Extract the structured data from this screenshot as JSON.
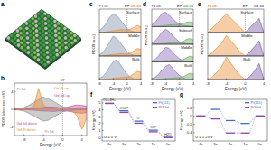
{
  "panel_labels": [
    "a",
    "b",
    "c",
    "d",
    "e",
    "f",
    "g"
  ],
  "chart_data": [
    {
      "type": "line",
      "x_label": "Energy (eV)",
      "y_label": "PDOS (electrons / eV)",
      "x": [
        -10,
        -9,
        -8,
        -7,
        -6,
        -5,
        -4,
        -3,
        -2,
        -1,
        0,
        1,
        2,
        3,
        4,
        5
      ],
      "xlim": [
        -10,
        5
      ],
      "ylim": [
        -6,
        6
      ],
      "xticks": [
        -8,
        -4,
        0,
        4
      ],
      "yticks": [
        -4,
        0,
        4
      ],
      "annotations": [
        {
          "text": "EF",
          "x": 0
        }
      ],
      "series": [
        {
          "name": "Pt 5d",
          "color": "#8c8c8c",
          "values": [
            0.1,
            0.2,
            0.4,
            0.9,
            1.6,
            2.2,
            2.8,
            2.4,
            1.9,
            1.2,
            0.6,
            0.3,
            0.2,
            0.1,
            0.1,
            0.05
          ]
        },
        {
          "name": "Gd 4f up",
          "color": "#e8913a",
          "values": [
            0,
            0,
            0,
            0.2,
            0.6,
            4.8,
            1.0,
            0.3,
            0.1,
            0,
            0,
            0,
            0,
            0,
            0,
            0
          ]
        },
        {
          "name": "Gd 5d up",
          "color": "#c0509a",
          "values": [
            0,
            0,
            0.1,
            0.1,
            0.2,
            0.3,
            0.4,
            0.5,
            0.5,
            0.4,
            0.3,
            0.5,
            0.8,
            1.0,
            0.9,
            0.7
          ]
        },
        {
          "name": "Gd 5d down",
          "color": "#c0509a",
          "values": [
            0,
            0,
            -0.1,
            -0.1,
            -0.2,
            -0.3,
            -0.4,
            -0.4,
            -0.5,
            -0.4,
            -0.3,
            -0.4,
            -0.6,
            -0.8,
            -0.9,
            -0.7
          ]
        },
        {
          "name": "Gd 4f down",
          "color": "#e8913a",
          "values": [
            0,
            0,
            0,
            0,
            0,
            0,
            0,
            0,
            0,
            0,
            0,
            0,
            -0.3,
            -1.5,
            -4.6,
            -2.0
          ]
        },
        {
          "name": "Pt 5d",
          "color": "#8c8c8c",
          "values": [
            -0.1,
            -0.2,
            -0.4,
            -0.9,
            -1.6,
            -2.1,
            -2.7,
            -2.5,
            -1.9,
            -1.2,
            -0.6,
            -0.3,
            -0.2,
            -0.1,
            -0.1,
            -0.05
          ]
        }
      ]
    },
    {
      "type": "line",
      "title": "Surface",
      "x": [
        -8,
        -7,
        -6,
        -5,
        -4,
        -3,
        -2,
        -1,
        0,
        1,
        2,
        3,
        4
      ],
      "xlim": [
        -8,
        4
      ],
      "ylim": [
        0,
        4
      ],
      "tick_labels": false,
      "legend": "top",
      "annotations": [
        {
          "text": "EF",
          "x": 0
        }
      ],
      "series": [
        {
          "name": "Pt 5d",
          "color": "#8593ad",
          "values": [
            0.3,
            0.8,
            1.6,
            2.6,
            3.2,
            2.9,
            2.2,
            1.4,
            0.7,
            0.3,
            0.15,
            0.1,
            0.1
          ]
        },
        {
          "name": "Gd 5d",
          "color": "#e8913a",
          "values": [
            0,
            0,
            0.1,
            0.2,
            0.3,
            0.4,
            0.5,
            0.5,
            0.4,
            0.6,
            0.9,
            1.2,
            1.0
          ]
        }
      ]
    },
    {
      "type": "line",
      "title": "Middle",
      "y_label": "PDOS (a.u.)",
      "x": [
        -8,
        -7,
        -6,
        -5,
        -4,
        -3,
        -2,
        -1,
        0,
        1,
        2,
        3,
        4
      ],
      "xlim": [
        -8,
        4
      ],
      "ylim": [
        0,
        4
      ],
      "tick_labels": false,
      "series": [
        {
          "color": "#8593ad",
          "values": [
            0.2,
            0.6,
            1.4,
            2.4,
            3.4,
            3.0,
            2.3,
            1.5,
            0.8,
            0.3,
            0.1,
            0.1,
            0.1
          ]
        },
        {
          "color": "#e8913a",
          "values": [
            0,
            0,
            0.1,
            0.2,
            0.3,
            0.3,
            0.4,
            0.4,
            0.3,
            0.5,
            0.9,
            1.3,
            1.1
          ]
        }
      ]
    },
    {
      "type": "line",
      "title": "Bulk",
      "x_label": "Energy (eV)",
      "x": [
        -8,
        -7,
        -6,
        -5,
        -4,
        -3,
        -2,
        -1,
        0,
        1,
        2,
        3,
        4
      ],
      "xlim": [
        -8,
        4
      ],
      "ylim": [
        0,
        4
      ],
      "xticks": [
        -8,
        -4,
        0,
        4
      ],
      "tick_labels": "x",
      "series": [
        {
          "color": "#8593ad",
          "values": [
            0.2,
            0.5,
            1.2,
            2.2,
            3.0,
            3.4,
            2.6,
            1.7,
            0.9,
            0.4,
            0.1,
            0.1,
            0.1
          ]
        },
        {
          "color": "#e8913a",
          "values": [
            0,
            0,
            0.1,
            0.1,
            0.2,
            0.3,
            0.3,
            0.4,
            0.4,
            0.6,
            1.0,
            1.4,
            1.2
          ]
        }
      ]
    },
    {
      "type": "line",
      "title": "Surface",
      "x": [
        -8,
        -7,
        -6,
        -5,
        -4,
        -3,
        -2,
        -1,
        0,
        1,
        2,
        3,
        4
      ],
      "xlim": [
        -8,
        4
      ],
      "ylim": [
        0,
        4
      ],
      "tick_labels": false,
      "legend": "top",
      "annotations": [
        {
          "text": "EF",
          "x": 0
        }
      ],
      "series": [
        {
          "name": "Pt 5d",
          "color": "#8e6bb8",
          "values": [
            0.4,
            1.0,
            2.0,
            3.0,
            3.3,
            2.6,
            1.8,
            1.1,
            0.6,
            0.3,
            0.2,
            0.1,
            0.1
          ]
        },
        {
          "name": "Gd 5d",
          "color": "#6aab5e",
          "values": [
            0,
            0.1,
            0.1,
            0.2,
            0.3,
            0.4,
            0.4,
            0.5,
            0.5,
            0.7,
            1.0,
            1.1,
            0.9
          ]
        }
      ]
    },
    {
      "type": "line",
      "title": "Subsurf",
      "y_label": "PDOS (a.u.)",
      "x": [
        -8,
        -7,
        -6,
        -5,
        -4,
        -3,
        -2,
        -1,
        0,
        1,
        2,
        3,
        4
      ],
      "xlim": [
        -8,
        4
      ],
      "ylim": [
        0,
        4
      ],
      "tick_labels": false,
      "series": [
        {
          "color": "#8e6bb8",
          "values": [
            0.3,
            0.8,
            1.7,
            2.8,
            3.4,
            2.9,
            2.0,
            1.2,
            0.6,
            0.3,
            0.1,
            0.1,
            0.1
          ]
        },
        {
          "color": "#6aab5e",
          "values": [
            0,
            0.1,
            0.1,
            0.2,
            0.2,
            0.3,
            0.4,
            0.4,
            0.4,
            0.6,
            1.1,
            1.3,
            1.0
          ]
        }
      ]
    },
    {
      "type": "line",
      "title": "Middle",
      "x": [
        -8,
        -7,
        -6,
        -5,
        -4,
        -3,
        -2,
        -1,
        0,
        1,
        2,
        3,
        4
      ],
      "xlim": [
        -8,
        4
      ],
      "ylim": [
        0,
        4
      ],
      "tick_labels": false,
      "series": [
        {
          "color": "#8e6bb8",
          "values": [
            0.2,
            0.6,
            1.4,
            2.5,
            3.3,
            3.1,
            2.2,
            1.4,
            0.7,
            0.3,
            0.1,
            0.1,
            0.1
          ]
        },
        {
          "color": "#6aab5e",
          "values": [
            0,
            0,
            0.1,
            0.2,
            0.3,
            0.3,
            0.4,
            0.4,
            0.3,
            0.5,
            0.9,
            1.3,
            1.1
          ]
        }
      ]
    },
    {
      "type": "line",
      "title": "Bulk",
      "x_label": "Energy (eV)",
      "x": [
        -8,
        -7,
        -6,
        -5,
        -4,
        -3,
        -2,
        -1,
        0,
        1,
        2,
        3,
        4
      ],
      "xlim": [
        -8,
        4
      ],
      "ylim": [
        0,
        4
      ],
      "xticks": [
        -8,
        -4,
        0,
        4
      ],
      "tick_labels": "x",
      "series": [
        {
          "color": "#8e6bb8",
          "values": [
            0.2,
            0.5,
            1.2,
            2.2,
            3.0,
            3.4,
            2.6,
            1.7,
            0.9,
            0.4,
            0.1,
            0.1,
            0.1
          ]
        },
        {
          "color": "#6aab5e",
          "values": [
            0,
            0,
            0.1,
            0.1,
            0.2,
            0.3,
            0.3,
            0.4,
            0.4,
            0.6,
            1.0,
            1.4,
            1.2
          ]
        }
      ]
    },
    {
      "type": "line",
      "title": "Surface",
      "x": [
        -8,
        -7,
        -6,
        -5,
        -4,
        -3,
        -2,
        -1,
        0,
        1,
        2,
        3,
        4
      ],
      "xlim": [
        -8,
        4
      ],
      "ylim": [
        0,
        2.5
      ],
      "tick_labels": false,
      "legend": "top",
      "annotations": [
        {
          "text": "EF",
          "x": 0
        }
      ],
      "series": [
        {
          "name": "Pt 5d",
          "color": "#e8913a",
          "values": [
            0,
            0.5,
            1.0,
            1.5,
            2.0,
            1.5,
            1.0,
            0.5,
            0,
            0,
            0,
            0,
            0
          ]
        },
        {
          "name": "Gd 5d",
          "color": "#7b5ea7",
          "values": [
            0,
            0,
            0,
            0,
            0,
            0,
            0,
            0,
            0,
            0.5,
            1.0,
            1.5,
            0
          ]
        }
      ]
    },
    {
      "type": "line",
      "title": "Middle",
      "y_label": "PDOS (a.u.)",
      "x": [
        -8,
        -7,
        -6,
        -5,
        -4,
        -3,
        -2,
        -1,
        0,
        1,
        2,
        3,
        4
      ],
      "xlim": [
        -8,
        4
      ],
      "ylim": [
        0,
        2.5
      ],
      "tick_labels": false,
      "series": [
        {
          "color": "#e8913a",
          "values": [
            0,
            0.4,
            0.9,
            1.4,
            2.2,
            1.6,
            1.0,
            0.4,
            0,
            0,
            0,
            0,
            0
          ]
        },
        {
          "color": "#7b5ea7",
          "values": [
            0,
            0,
            0,
            0,
            0,
            0,
            0,
            0,
            0,
            0.4,
            1.0,
            1.6,
            0
          ]
        }
      ]
    },
    {
      "type": "line",
      "title": "Bulk",
      "x_label": "Energy (eV)",
      "x": [
        -8,
        -7,
        -6,
        -5,
        -4,
        -3,
        -2,
        -1,
        0,
        1,
        2,
        3,
        4
      ],
      "xlim": [
        -8,
        4
      ],
      "ylim": [
        0,
        2.5
      ],
      "xticks": [
        -8,
        -4,
        0,
        4
      ],
      "tick_labels": "x",
      "series": [
        {
          "color": "#e8913a",
          "values": [
            0,
            0.3,
            0.8,
            1.4,
            2.4,
            1.7,
            1.0,
            0.4,
            0,
            0,
            0,
            0,
            0
          ]
        },
        {
          "color": "#7b5ea7",
          "values": [
            0,
            0,
            0,
            0,
            0,
            0,
            0,
            0,
            0,
            0.3,
            0.9,
            1.7,
            0
          ]
        }
      ]
    },
    {
      "type": "step",
      "y_label": "Energy (eV)",
      "categories": [
        "4e",
        "3e",
        "2e",
        "1e",
        "0e"
      ],
      "ylim": [
        -0.5,
        5.5
      ],
      "yticks": [
        0,
        1,
        2,
        3,
        4,
        5
      ],
      "legend": "upper right",
      "step_labels": [
        "O2+4H+",
        "OOH*",
        "O*",
        "OH*",
        "H2O"
      ],
      "annotations": [
        {
          "text": "U = 0 V"
        }
      ],
      "series": [
        {
          "name": "Pt(111)",
          "color": "#3b6fc4",
          "values": [
            4.92,
            3.85,
            2.35,
            1.05,
            0
          ]
        },
        {
          "name": "Pt3Gd",
          "color": "#8e44ad",
          "values": [
            4.92,
            3.62,
            2.05,
            0.82,
            0
          ]
        }
      ]
    },
    {
      "type": "step",
      "y_label": "Energy (eV)",
      "categories": [
        "4e",
        "3e",
        "2e",
        "1e",
        "0e"
      ],
      "ylim": [
        -0.6,
        0.4
      ],
      "yticks": [
        -0.4,
        -0.2,
        0,
        0.2
      ],
      "legend": "upper right",
      "annotations": [
        {
          "text": "U = 1.23 V"
        }
      ],
      "series": [
        {
          "name": "Pt(111)",
          "color": "#3b6fc4",
          "values": [
            0,
            0.16,
            -0.11,
            -0.18,
            0
          ]
        },
        {
          "name": "Pt3Gd",
          "color": "#8e44ad",
          "values": [
            0,
            -0.07,
            -0.41,
            -0.41,
            0
          ]
        }
      ]
    }
  ]
}
